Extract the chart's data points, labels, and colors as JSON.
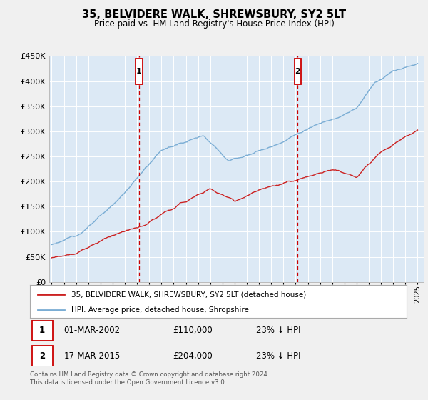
{
  "title": "35, BELVIDERE WALK, SHREWSBURY, SY2 5LT",
  "subtitle": "Price paid vs. HM Land Registry's House Price Index (HPI)",
  "background_color": "#f0f0f0",
  "plot_bg_color": "#dce9f5",
  "hpi_color": "#7aadd4",
  "price_color": "#cc2222",
  "marker1_label": "1",
  "marker2_label": "2",
  "year1": 2002.17,
  "year2": 2015.17,
  "legend_line1": "35, BELVIDERE WALK, SHREWSBURY, SY2 5LT (detached house)",
  "legend_line2": "HPI: Average price, detached house, Shropshire",
  "table_row1": [
    "1",
    "01-MAR-2002",
    "£110,000",
    "23% ↓ HPI"
  ],
  "table_row2": [
    "2",
    "17-MAR-2015",
    "£204,000",
    "23% ↓ HPI"
  ],
  "footer": "Contains HM Land Registry data © Crown copyright and database right 2024.\nThis data is licensed under the Open Government Licence v3.0.",
  "ylim": [
    0,
    450000
  ],
  "yticks": [
    0,
    50000,
    100000,
    150000,
    200000,
    250000,
    300000,
    350000,
    400000,
    450000
  ],
  "x_start_year": 1995,
  "x_end_year": 2025
}
